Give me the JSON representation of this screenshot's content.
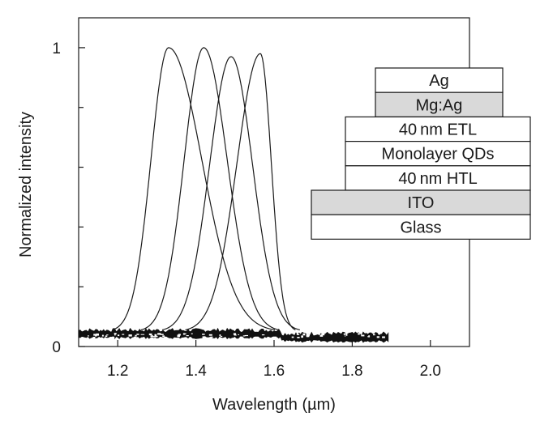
{
  "chart_data": {
    "type": "line",
    "xlabel": "Wavelength (µm)",
    "ylabel": "Normalized intensity",
    "xlim": [
      1.1,
      2.1
    ],
    "ylim": [
      0,
      1.1
    ],
    "x_ticks": [
      1.2,
      1.4,
      1.6,
      1.8,
      2.0
    ],
    "x_tick_labels": [
      "1.2",
      "1.4",
      "1.6",
      "1.8",
      "2.0"
    ],
    "y_tick_labels": [
      {
        "value": 0,
        "label": "0"
      },
      {
        "value": 1,
        "label": "1"
      }
    ],
    "y_minor_ticks": [
      0.2,
      0.4,
      0.6,
      0.8
    ],
    "grid": false,
    "series": [
      {
        "peak": 1.33,
        "amplitude": 1.0,
        "sigma_left": 0.045,
        "sigma_right": 0.085,
        "x": [
          1.1,
          1.25,
          1.29,
          1.33,
          1.4,
          1.48,
          1.56,
          1.62,
          1.9
        ],
        "values": [
          0.05,
          0.15,
          0.7,
          1.0,
          0.64,
          0.17,
          0.08,
          0.05,
          0.03
        ]
      },
      {
        "peak": 1.42,
        "amplitude": 1.0,
        "sigma_left": 0.05,
        "sigma_right": 0.06,
        "x": [
          1.1,
          1.3,
          1.35,
          1.42,
          1.48,
          1.56,
          1.62,
          1.9
        ],
        "values": [
          0.05,
          0.1,
          0.6,
          1.0,
          0.55,
          0.05,
          0.05,
          0.03
        ]
      },
      {
        "peak": 1.49,
        "amplitude": 0.97,
        "sigma_left": 0.055,
        "sigma_right": 0.055,
        "x": [
          1.1,
          1.33,
          1.4,
          1.49,
          1.56,
          1.63,
          1.9
        ],
        "values": [
          0.05,
          0.07,
          0.52,
          0.97,
          0.55,
          0.05,
          0.03
        ]
      },
      {
        "peak": 1.565,
        "amplitude": 0.98,
        "sigma_left": 0.06,
        "sigma_right": 0.028,
        "x": [
          1.1,
          1.4,
          1.48,
          1.565,
          1.6,
          1.63,
          1.9
        ],
        "values": [
          0.05,
          0.07,
          0.52,
          0.98,
          0.75,
          0.1,
          0.03
        ]
      }
    ]
  },
  "device_stack": {
    "layers": [
      {
        "label": "Ag",
        "fill": "#ffffff"
      },
      {
        "label": "Mg:Ag",
        "fill": "#d9d9d9"
      },
      {
        "label": "40 nm ETL",
        "fill": "#ffffff"
      },
      {
        "label": "Monolayer QDs",
        "fill": "#ffffff"
      },
      {
        "label": "40 nm HTL",
        "fill": "#ffffff"
      },
      {
        "label": "ITO",
        "fill": "#d9d9d9"
      },
      {
        "label": "Glass",
        "fill": "#ffffff"
      }
    ]
  },
  "colors": {
    "line": "#1a1a1a",
    "noise": "#111111"
  }
}
